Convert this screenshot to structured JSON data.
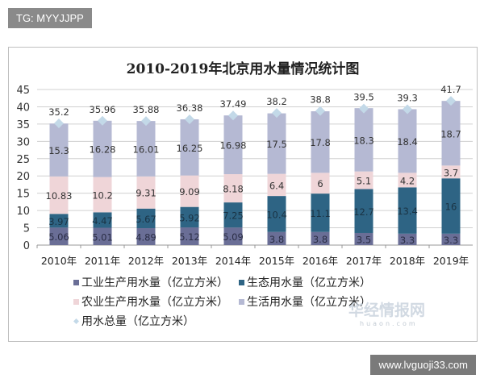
{
  "overlay": {
    "tag": "TG: MYYJJPP",
    "site": "www.lvguoji33.com",
    "watermark_cn": "华经情报网",
    "watermark_en": "huaon.com"
  },
  "chart_data": {
    "type": "bar",
    "stacked": true,
    "title": "2010-2019年北京用水量情况统计图",
    "categories": [
      "2010年",
      "2011年",
      "2012年",
      "2013年",
      "2014年",
      "2015年",
      "2016年",
      "2017年",
      "2018年",
      "2019年"
    ],
    "ylim": [
      0,
      45
    ],
    "yticks": [
      0,
      5,
      10,
      15,
      20,
      25,
      30,
      35,
      40,
      45
    ],
    "grid": true,
    "legend_position": "bottom",
    "series": [
      {
        "name": "工业生产用水量（亿立方米）",
        "color": "#6a6e96",
        "label_color": "#2a2d45",
        "values": [
          5.06,
          5.01,
          4.89,
          5.12,
          5.09,
          3.8,
          3.8,
          3.5,
          3.3,
          3.3
        ]
      },
      {
        "name": "生态用水量（亿立方米）",
        "color": "#2e6484",
        "label_color": "#1a3344",
        "values": [
          3.97,
          4.47,
          5.67,
          5.92,
          7.25,
          10.4,
          11.1,
          12.7,
          13.4,
          16
        ]
      },
      {
        "name": "农业生产用水量（亿立方米）",
        "color": "#efd5d8",
        "label_color": "#333",
        "values": [
          10.83,
          10.2,
          9.31,
          9.09,
          8.18,
          6.4,
          6,
          5.1,
          4.2,
          3.7
        ]
      },
      {
        "name": "生活用水量（亿立方米）",
        "color": "#b5b9d3",
        "label_color": "#333",
        "values": [
          15.3,
          16.28,
          16.01,
          16.25,
          16.98,
          17.5,
          17.8,
          18.3,
          18.4,
          18.7
        ]
      }
    ],
    "total": {
      "name": "用水总量（亿立方米）",
      "color": "#c3d9e8",
      "marker": "diamond",
      "values": [
        35.2,
        35.96,
        35.88,
        36.38,
        37.49,
        38.2,
        38.8,
        39.5,
        39.3,
        41.7
      ]
    }
  }
}
